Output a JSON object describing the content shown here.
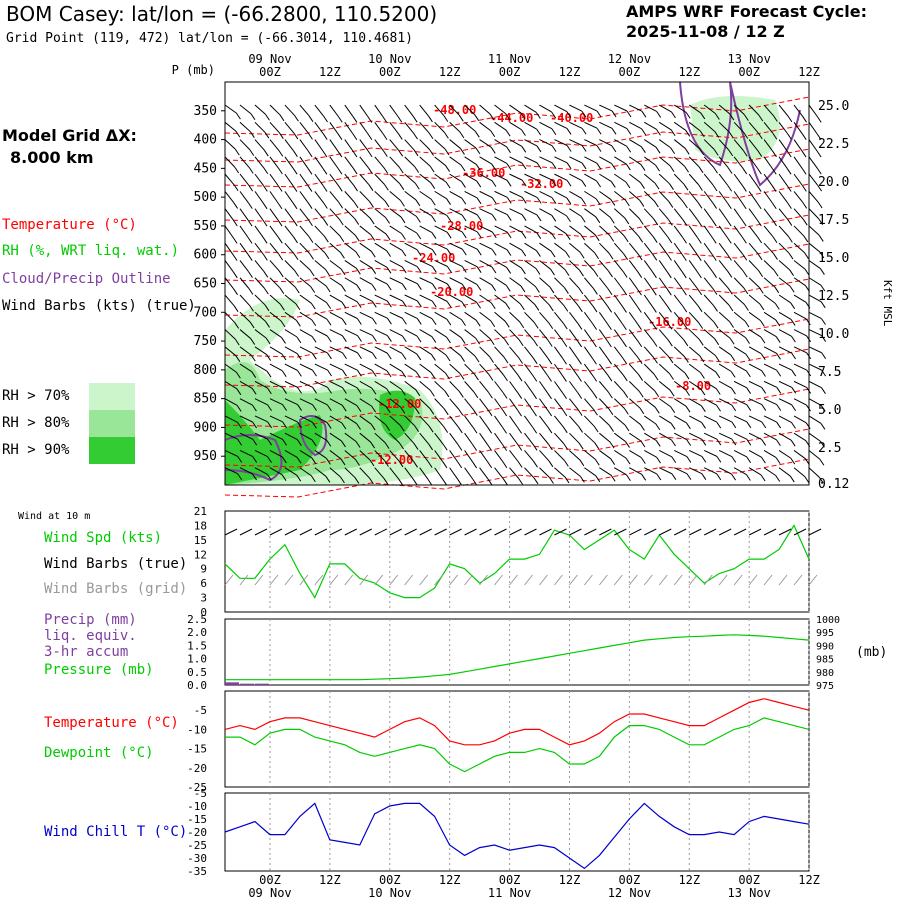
{
  "header": {
    "title": "BOM Casey:  lat/lon = (-66.2800, 110.5200)",
    "grid_point": "Grid Point (119, 472) lat/lon = (-66.3014, 110.4681)",
    "cycle_label": "AMPS WRF Forecast Cycle:",
    "cycle_value": "2025-11-08 / 12  Z",
    "model_grid_label": "Model Grid ΔX:",
    "model_grid_value": "8.000 km"
  },
  "legend": {
    "temperature": "Temperature (°C)",
    "rh": "RH (%, WRT liq. wat.)",
    "cloud": "Cloud/Precip Outline",
    "wind_barbs": "Wind Barbs (kts) (true)",
    "rh_bins": [
      {
        "label": "RH > 70%",
        "color": "#ccf5cc"
      },
      {
        "label": "RH > 80%",
        "color": "#99e699"
      },
      {
        "label": "RH > 90%",
        "color": "#33cc33"
      }
    ]
  },
  "time_axis": {
    "ticks": [
      "00Z",
      "12Z",
      "00Z",
      "12Z",
      "00Z",
      "12Z",
      "00Z",
      "12Z",
      "00Z",
      "12Z"
    ],
    "dates": [
      "09 Nov",
      "10 Nov",
      "11 Nov",
      "12 Nov",
      "13 Nov"
    ]
  },
  "colors": {
    "temperature": "#ff0000",
    "wind_speed": "#00cc00",
    "precip": "#7f3f9f",
    "dewpoint": "#00cc00",
    "wind_chill": "#0000cc",
    "grid_barbs": "#999999"
  },
  "chart_data": [
    {
      "type": "heatmap",
      "name": "vertical cross-section",
      "y_axis_label": "P (mb)",
      "pressure_ticks": [
        "350",
        "400",
        "450",
        "500",
        "550",
        "600",
        "650",
        "700",
        "750",
        "800",
        "850",
        "900",
        "950"
      ],
      "ylim": [
        300,
        1000
      ],
      "right_axis_label": "Kft MSL",
      "height_ticks": [
        "25.0",
        "22.5",
        "20.0",
        "17.5",
        "15.0",
        "12.5",
        "10.0",
        "7.5",
        "5.0",
        "2.5",
        "0.12"
      ],
      "temperature_contour_labels": [
        "-48.00",
        "-44.00",
        "-40.00",
        "-36.00",
        "-32.00",
        "-28.00",
        "-24.00",
        "-20.00",
        "-16.00",
        "-12.00",
        "-12.00",
        "-8.00"
      ]
    },
    {
      "type": "line",
      "name": "wind at 10 m",
      "panel_label": "Wind at 10 m",
      "series_labels": {
        "speed": "Wind Spd (kts)",
        "barbs_true": "Wind Barbs (true)",
        "barbs_grid": "Wind Barbs (grid)"
      },
      "y_ticks": [
        "21",
        "18",
        "15",
        "12",
        "9",
        "6",
        "3",
        "0"
      ],
      "ylim": [
        0,
        21
      ],
      "series": [
        {
          "name": "Wind Spd (kts)",
          "x": [
            0,
            3,
            6,
            9,
            12,
            15,
            18,
            21,
            24,
            27,
            30,
            33,
            36,
            39,
            42,
            45,
            48,
            51,
            54,
            57,
            60,
            63,
            66,
            69,
            72,
            75,
            78,
            81,
            84,
            87,
            90,
            93,
            96,
            99,
            102,
            105,
            108,
            111,
            114,
            117
          ],
          "values": [
            10,
            7,
            7,
            11,
            14,
            8,
            3,
            10,
            10,
            7,
            6,
            4,
            3,
            3,
            5,
            10,
            9,
            6,
            8,
            11,
            11,
            12,
            17,
            16,
            13,
            15,
            17,
            13,
            11,
            16,
            12,
            9,
            6,
            8,
            9,
            11,
            11,
            13,
            18,
            11
          ]
        }
      ]
    },
    {
      "type": "line",
      "name": "precip and pressure",
      "series_labels": {
        "precip": "Precip (mm)",
        "precip_sub1": "liq. equiv.",
        "precip_sub2": "3-hr accum",
        "pressure": "Pressure (mb)"
      },
      "left_ticks": [
        "2.5",
        "2.0",
        "1.5",
        "1.0",
        "0.5",
        "0.0"
      ],
      "right_ticks": [
        "1000",
        "995",
        "990",
        "985",
        "980",
        "975"
      ],
      "right_unit": "(mb)",
      "ylim_precip": [
        0,
        2.5
      ],
      "ylim_pressure": [
        975,
        1000
      ],
      "precip_values": [
        0.1,
        0.05,
        0.05,
        0,
        0,
        0,
        0,
        0,
        0,
        0,
        0,
        0,
        0,
        0,
        0,
        0,
        0,
        0,
        0,
        0,
        0,
        0,
        0,
        0,
        0,
        0,
        0,
        0,
        0,
        0,
        0,
        0,
        0,
        0,
        0,
        0,
        0,
        0,
        0,
        0
      ],
      "pressure_values": [
        977,
        977,
        977,
        977,
        977,
        977,
        977,
        977,
        977,
        977,
        977.2,
        977.4,
        977.6,
        978,
        978.5,
        979,
        980,
        981,
        982,
        983,
        984,
        985,
        986,
        987,
        988,
        989,
        990,
        991,
        992,
        992.5,
        993,
        993.3,
        993.5,
        993.8,
        994,
        993.8,
        993.5,
        993,
        992.5,
        992
      ]
    },
    {
      "type": "line",
      "name": "temperature and dewpoint",
      "series_labels": {
        "temperature": "Temperature (°C)",
        "dewpoint": "Dewpoint (°C)"
      },
      "y_ticks": [
        "-5",
        "-10",
        "-15",
        "-20",
        "-25"
      ],
      "ylim": [
        -25,
        0
      ],
      "series": [
        {
          "name": "Temperature (°C)",
          "values": [
            -10,
            -9,
            -10,
            -8,
            -7,
            -7,
            -8,
            -9,
            -10,
            -11,
            -12,
            -10,
            -8,
            -7,
            -9,
            -13,
            -14,
            -14,
            -13,
            -11,
            -10,
            -10,
            -12,
            -14,
            -13,
            -11,
            -8,
            -6,
            -6,
            -7,
            -8,
            -9,
            -9,
            -7,
            -5,
            -3,
            -2,
            -3,
            -4,
            -5
          ]
        },
        {
          "name": "Dewpoint (°C)",
          "values": [
            -12,
            -12,
            -14,
            -11,
            -10,
            -10,
            -12,
            -13,
            -14,
            -16,
            -17,
            -16,
            -15,
            -14,
            -15,
            -19,
            -21,
            -19,
            -17,
            -16,
            -16,
            -15,
            -16,
            -19,
            -19,
            -17,
            -12,
            -9,
            -9,
            -10,
            -12,
            -14,
            -14,
            -12,
            -10,
            -9,
            -7,
            -8,
            -9,
            -10
          ]
        }
      ]
    },
    {
      "type": "line",
      "name": "wind chill",
      "series_labels": {
        "wind_chill": "Wind Chill T (°C)"
      },
      "y_ticks": [
        "-5",
        "-10",
        "-15",
        "-20",
        "-25",
        "-30",
        "-35"
      ],
      "ylim": [
        -35,
        -5
      ],
      "series": [
        {
          "name": "Wind Chill T (°C)",
          "values": [
            -20,
            -18,
            -16,
            -21,
            -21,
            -14,
            -9,
            -23,
            -24,
            -25,
            -13,
            -10,
            -9,
            -9,
            -14,
            -25,
            -29,
            -26,
            -25,
            -27,
            -26,
            -25,
            -26,
            -30,
            -34,
            -29,
            -22,
            -15,
            -9,
            -14,
            -18,
            -21,
            -21,
            -20,
            -21,
            -16,
            -14,
            -15,
            -16,
            -17
          ]
        }
      ]
    }
  ]
}
